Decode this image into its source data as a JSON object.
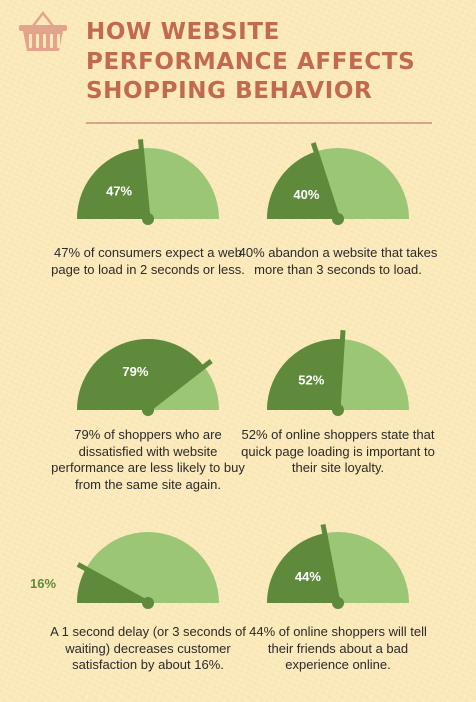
{
  "header": {
    "title_lines": [
      "HOW WEBSITE",
      "PERFORMANCE AFFECTS",
      "SHOPPING BEHAVIOR"
    ],
    "icon": "shopping-basket-icon"
  },
  "colors": {
    "title": "#c26a50",
    "gauge_dark": "#5f8a3c",
    "gauge_light": "#9ac675",
    "background": "#fbe9b9"
  },
  "stats": [
    {
      "percent": 47,
      "label": "47%",
      "caption": "47% of consumers expect a web page to load in 2 seconds or less."
    },
    {
      "percent": 40,
      "label": "40%",
      "caption": "40% abandon a website that takes more than 3 seconds to load."
    },
    {
      "percent": 79,
      "label": "79%",
      "caption": "79% of shoppers who are dissatisfied with website performance are less likely to buy from the same site again."
    },
    {
      "percent": 52,
      "label": "52%",
      "caption": "52% of online shoppers state that quick page loading is important to their site loyalty."
    },
    {
      "percent": 16,
      "label": "16%",
      "caption": "A 1 second delay (or 3 seconds of waiting) decreases customer satisfaction by about 16%."
    },
    {
      "percent": 44,
      "label": "44%",
      "caption": "44% of online shoppers will tell their friends about a bad experience online."
    }
  ]
}
